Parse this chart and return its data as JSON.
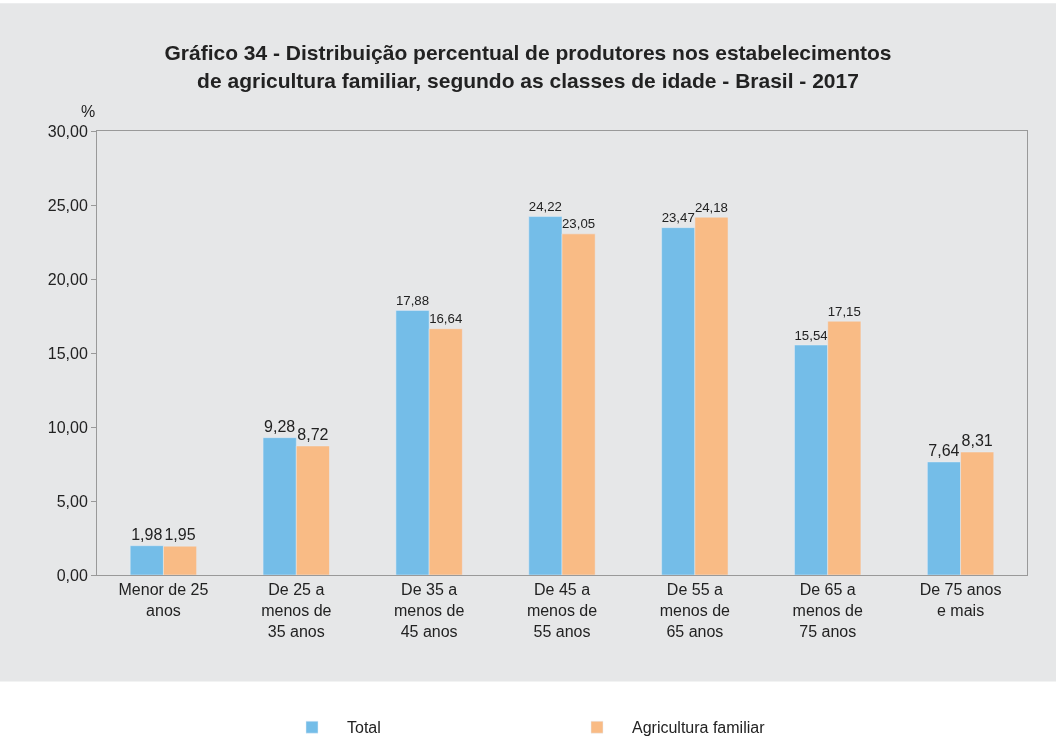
{
  "chart_data": {
    "type": "bar",
    "title": "Gráfico 34 - Distribuição percentual de produtores nos estabelecimentos\nde agricultura familiar, segundo as classes de idade - Brasil - 2017",
    "ylabel": "%",
    "categories": [
      "Menor de 25\nanos",
      "De 25 a\nmenos de\n35 anos",
      "De 35 a\nmenos de\n45 anos",
      "De 45 a\nmenos de\n55 anos",
      "De 55 a\nmenos de\n65 anos",
      "De 65 a\nmenos de\n75 anos",
      "De 75 anos\ne mais"
    ],
    "series": [
      {
        "name": "Total",
        "color": "#74bde8",
        "values": [
          1.98,
          9.28,
          17.88,
          24.22,
          23.47,
          15.54,
          7.64
        ],
        "value_labels": [
          "1,98",
          "9,28",
          "17,88",
          "24,22",
          "23,47",
          "15,54",
          "7,64"
        ]
      },
      {
        "name": "Agricultura familiar",
        "color": "#f9bb85",
        "values": [
          1.95,
          8.72,
          16.64,
          23.05,
          24.18,
          17.15,
          8.31
        ],
        "value_labels": [
          "1,95",
          "8,72",
          "16,64",
          "23,05",
          "24,18",
          "17,15",
          "8,31"
        ]
      }
    ],
    "ylim": [
      0,
      30
    ],
    "yticks": [
      {
        "value": 0,
        "label": "0,00"
      },
      {
        "value": 5,
        "label": "5,00"
      },
      {
        "value": 10,
        "label": "10,00"
      },
      {
        "value": 15,
        "label": "15,00"
      },
      {
        "value": 20,
        "label": "20,00"
      },
      {
        "value": 25,
        "label": "25,00"
      },
      {
        "value": 30,
        "label": "30,00"
      }
    ],
    "grid": false,
    "legend": "bottom"
  }
}
